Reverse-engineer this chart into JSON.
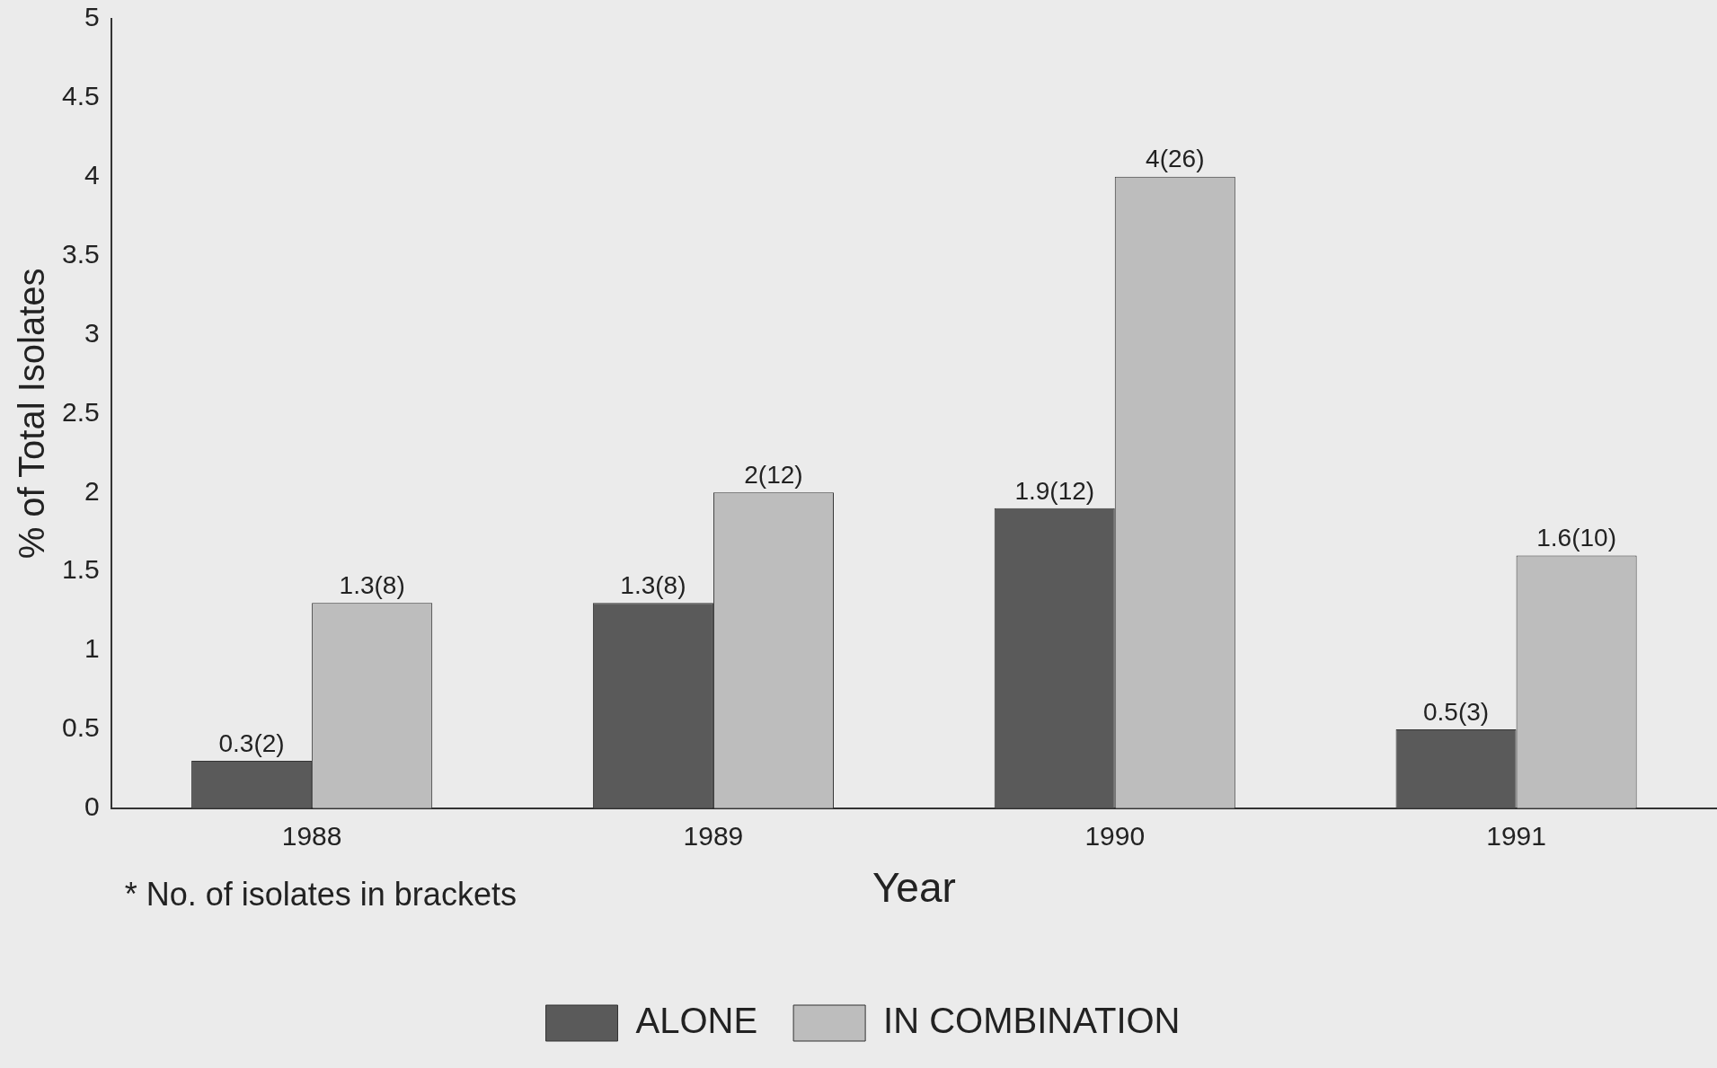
{
  "chart_data": {
    "type": "bar",
    "xlabel": "Year",
    "ylabel": "% of Total Isolates",
    "categories": [
      "1988",
      "1989",
      "1990",
      "1991"
    ],
    "series": [
      {
        "name": "ALONE",
        "color": "#5a5a5a",
        "values": [
          0.3,
          1.3,
          1.9,
          0.5
        ],
        "value_labels": [
          "0.3(2)",
          "1.3(8)",
          "1.9(12)",
          "0.5(3)"
        ]
      },
      {
        "name": "IN COMBINATION",
        "color": "#bdbdbd",
        "values": [
          1.3,
          2,
          4,
          1.6
        ],
        "value_labels": [
          "1.3(8)",
          "2(12)",
          "4(26)",
          "1.6(10)"
        ]
      }
    ],
    "ylim": [
      0,
      5
    ],
    "yticks": [
      0,
      0.5,
      1,
      1.5,
      2,
      2.5,
      3,
      3.5,
      4,
      4.5,
      5
    ],
    "grid": false,
    "legend": "bottom",
    "annotations": [
      "* No. of isolates in brackets"
    ]
  }
}
